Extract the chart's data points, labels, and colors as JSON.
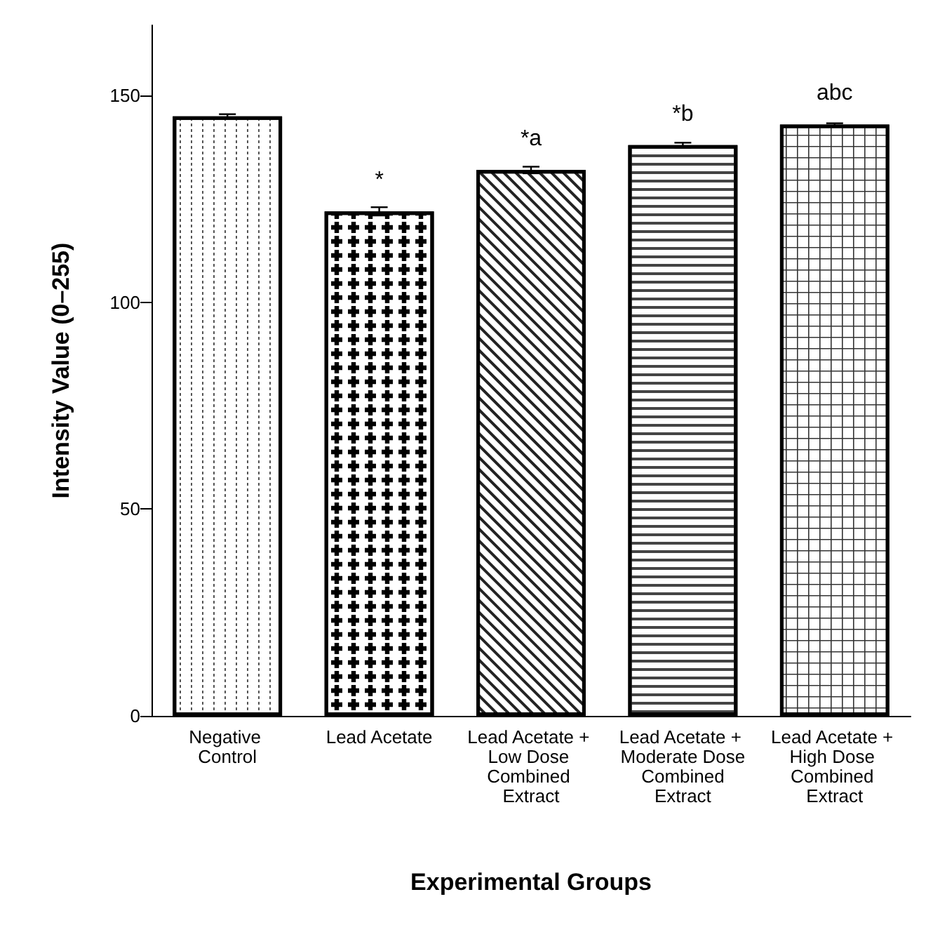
{
  "chart_data": {
    "type": "bar",
    "xlabel": "Experimental Groups",
    "ylabel": "Intensity Value (0–255)",
    "categories": [
      "Negative Control",
      "Lead Acetate",
      "Lead Acetate + Low Dose Combined Extract",
      "Lead Acetate + Moderate Dose Combined Extract",
      "Lead Acetate + High Dose Combined Extract"
    ],
    "values": [
      145,
      122,
      132,
      138,
      143
    ],
    "errors": [
      0.5,
      1,
      0.8,
      0.6,
      0.3
    ],
    "color": "#ffffff",
    "value_labels": [
      null,
      "*",
      "*a",
      "*b",
      "abc"
    ],
    "ylim": [
      0,
      167
    ],
    "yticks": [
      0,
      50,
      100,
      150
    ],
    "grid": false
  }
}
